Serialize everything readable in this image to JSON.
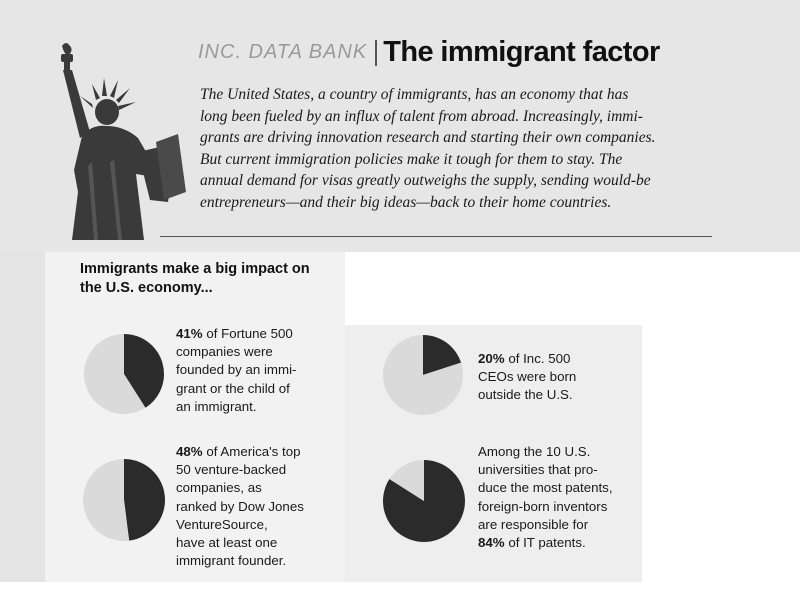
{
  "header": {
    "kicker": "INC. DATA BANK",
    "title": "The immigrant factor"
  },
  "intro": {
    "lines": [
      "The United States, a country of immigrants, has an economy that has",
      "long been fueled by an influx of talent from abroad. Increasingly, immi-",
      "grants are driving innovation research and starting their own companies.",
      "But current immigration policies make it tough for them to stay. The",
      "annual demand for visas greatly outweighs the supply, sending would-be",
      "entrepreneurs—and their big ideas—back to their home countries."
    ]
  },
  "subhead": {
    "lines": [
      "Immigrants make a big impact on",
      "the U.S. economy..."
    ]
  },
  "colors": {
    "pie_dark": "#2b2b2b",
    "pie_light": "#dadada"
  },
  "chart_data": [
    {
      "type": "pie",
      "slices": [
        {
          "label": "41%",
          "value": 41
        },
        {
          "label": "",
          "value": 59
        }
      ],
      "caption": {
        "highlight": "41%",
        "lines": [
          " of Fortune 500",
          "companies were",
          "founded by an immi-",
          "grant or the child of",
          "an immigrant."
        ]
      }
    },
    {
      "type": "pie",
      "slices": [
        {
          "label": "48%",
          "value": 48
        },
        {
          "label": "",
          "value": 52
        }
      ],
      "caption": {
        "highlight": "48%",
        "lines": [
          " of America's top",
          "50 venture-backed",
          "companies, as",
          "ranked by Dow Jones",
          "VentureSource,",
          "have at least one",
          "immigrant founder."
        ]
      }
    },
    {
      "type": "pie",
      "slices": [
        {
          "label": "20%",
          "value": 20
        },
        {
          "label": "",
          "value": 80
        }
      ],
      "caption": {
        "highlight": "20%",
        "lines": [
          " of Inc. 500",
          "CEOs were born",
          "outside the U.S."
        ]
      }
    },
    {
      "type": "pie",
      "slices": [
        {
          "label": "84%",
          "value": 84
        },
        {
          "label": "",
          "value": 16
        }
      ],
      "caption": {
        "highlight": "84%",
        "lines": [
          "Among the 10 U.S.",
          "universities that pro-",
          "duce the most patents,",
          "foreign-born inventors",
          "are responsible for",
          " of IT patents."
        ]
      }
    }
  ]
}
